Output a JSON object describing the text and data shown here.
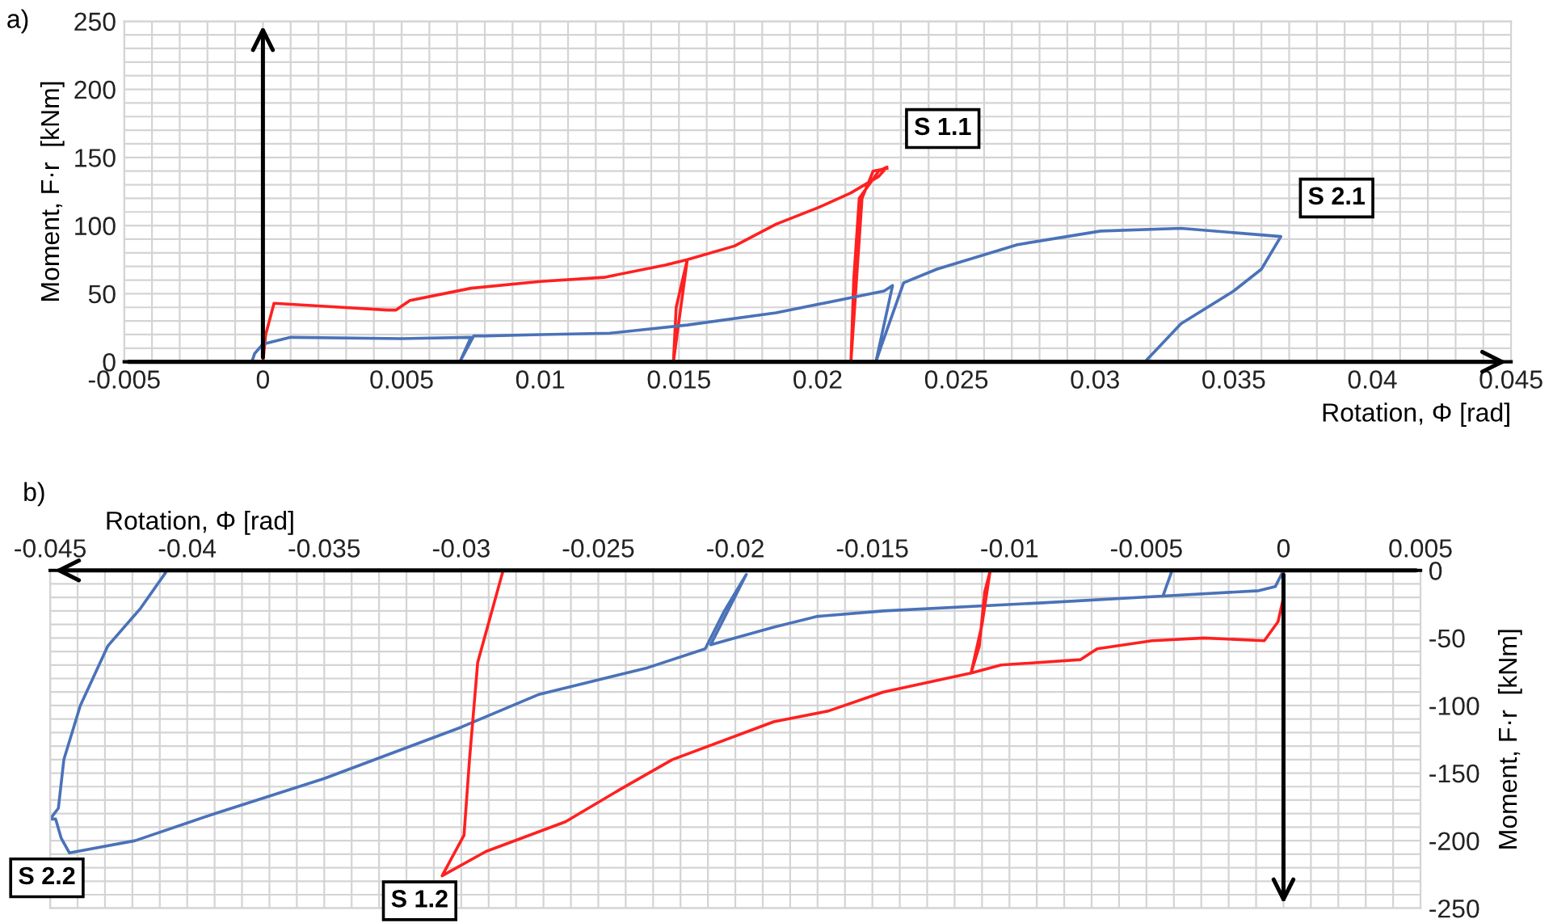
{
  "chart_data": [
    {
      "type": "line",
      "title": "a)",
      "xlabel": "Rotation, Φ [rad]",
      "ylabel": "Moment, F·r  [kNm]",
      "xlim": [
        -0.005,
        0.045
      ],
      "xticks": [
        -0.005,
        0,
        0.005,
        0.01,
        0.015,
        0.02,
        0.025,
        0.03,
        0.035,
        0.04,
        0.045
      ],
      "ylim": [
        0,
        250
      ],
      "yticks": [
        0,
        50,
        100,
        150,
        200,
        250
      ],
      "grid": true,
      "legend": false,
      "series": [
        {
          "name": "S 1.1",
          "color": "#ff2020",
          "x": [
            0,
            0.0001,
            0.0004,
            0.002,
            0.0045,
            0.0048,
            0.0053,
            0.0075,
            0.01,
            0.0123,
            0.0145,
            0.0153,
            0.0149,
            0.0148,
            0.015,
            0.0153,
            0.017,
            0.0185,
            0.02,
            0.0212,
            0.0222,
            0.0225,
            0.0222,
            0.0215,
            0.0213,
            0.0212,
            0.0214,
            0.0216,
            0.022,
            0.0225
          ],
          "values": [
            0,
            20,
            43,
            41,
            38,
            38,
            45,
            54,
            59,
            62,
            71,
            75,
            40,
            0,
            30,
            75,
            85,
            101,
            113,
            124,
            136,
            143,
            140,
            120,
            60,
            0,
            60,
            120,
            140,
            142
          ]
        },
        {
          "name": "S 2.1",
          "color": "#4a72b8",
          "x": [
            -0.0004,
            -0.0003,
            0,
            0.001,
            0.005,
            0.0075,
            0.0071,
            0.0076,
            0.008,
            0.01,
            0.0125,
            0.0153,
            0.0185,
            0.0224,
            0.0227,
            0.0221,
            0.0223,
            0.0231,
            0.0243,
            0.0272,
            0.0302,
            0.0331,
            0.0367,
            0.036,
            0.035,
            0.0331,
            0.0318
          ],
          "values": [
            0,
            6,
            13,
            18,
            17,
            18,
            0,
            19,
            19,
            20,
            21,
            27,
            36,
            52,
            56,
            0,
            12,
            58,
            68,
            86,
            96,
            98,
            92,
            68,
            52,
            28,
            0
          ]
        }
      ]
    },
    {
      "type": "line",
      "title": "b)",
      "xlabel": "Rotation, Φ [rad]",
      "ylabel": "Moment, F·r  [kNm]",
      "xlim": [
        -0.045,
        0.005
      ],
      "xticks": [
        -0.045,
        -0.04,
        -0.035,
        -0.03,
        -0.025,
        -0.02,
        -0.015,
        -0.01,
        -0.005,
        0,
        0.005
      ],
      "ylim": [
        -250,
        0
      ],
      "yticks": [
        -250,
        -200,
        -150,
        -100,
        -50,
        0
      ],
      "grid": true,
      "legend": false,
      "series": [
        {
          "name": "S 2.2",
          "color": "#4a72b8",
          "x": [
            0,
            -0.0003,
            -0.0009,
            -0.0044,
            -0.0041,
            -0.0044,
            -0.0088,
            -0.0146,
            -0.017,
            -0.0186,
            -0.0209,
            -0.0196,
            -0.0204,
            -0.0211,
            -0.0232,
            -0.0272,
            -0.03,
            -0.035,
            -0.039,
            -0.0419,
            -0.0443,
            -0.0446,
            -0.0448,
            -0.045,
            -0.0447,
            -0.0445,
            -0.0439,
            -0.0429,
            -0.0417,
            -0.0408
          ],
          "values": [
            0,
            -12,
            -15,
            -19,
            -2,
            -19,
            -24,
            -30,
            -34,
            -42,
            -55,
            -3,
            -30,
            -58,
            -72,
            -92,
            -116,
            -154,
            -180,
            -200,
            -209,
            -198,
            -184,
            -184,
            -176,
            -140,
            -100,
            -56,
            -28,
            -2
          ]
        },
        {
          "name": "S 1.2",
          "color": "#ff2020",
          "x": [
            0,
            0,
            -0.0002,
            -0.0007,
            -0.0029,
            -0.0048,
            -0.0068,
            -0.0074,
            -0.0103,
            -0.0114,
            -0.0111,
            -0.0109,
            -0.0107,
            -0.011,
            -0.0114,
            -0.0146,
            -0.0166,
            -0.0186,
            -0.0223,
            -0.0242,
            -0.0262,
            -0.0291,
            -0.0307,
            -0.0299,
            -0.0297,
            -0.0294,
            -0.0285
          ],
          "values": [
            0,
            -20,
            -38,
            -52,
            -50,
            -52,
            -58,
            -66,
            -70,
            -76,
            -56,
            -16,
            0,
            -40,
            -76,
            -90,
            -104,
            -112,
            -140,
            -162,
            -186,
            -208,
            -226,
            -196,
            -140,
            -68,
            -2
          ]
        }
      ]
    }
  ]
}
